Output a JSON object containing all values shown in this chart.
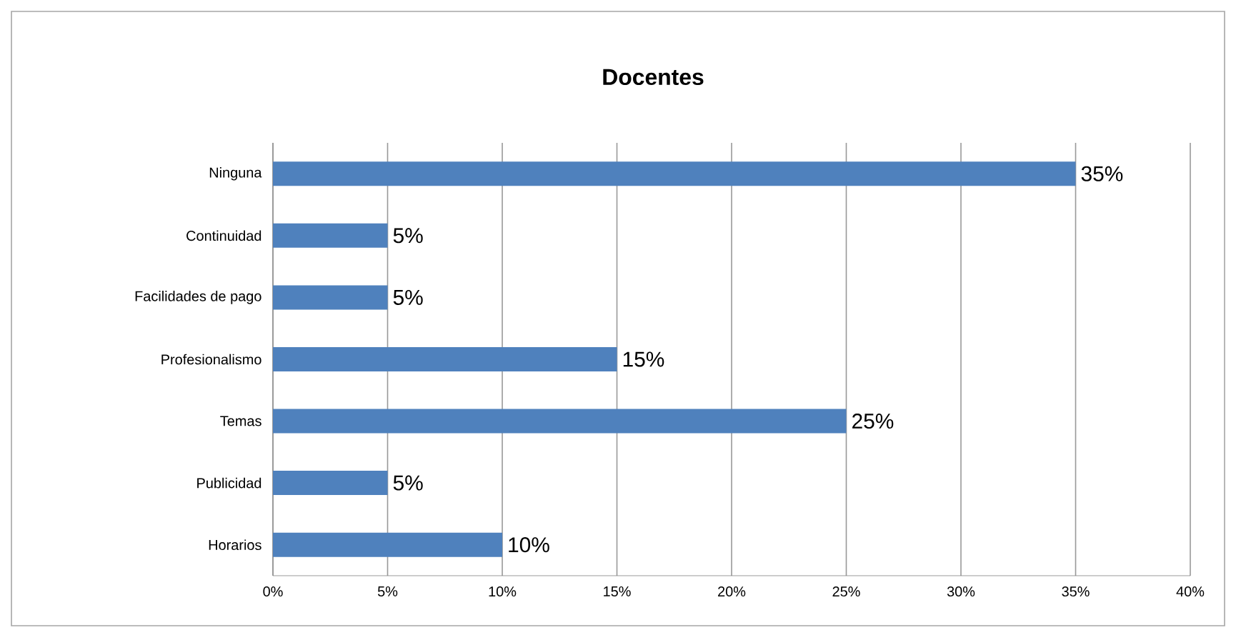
{
  "chart_data": {
    "type": "bar",
    "orientation": "horizontal",
    "title": "Docentes",
    "categories": [
      "Ninguna",
      "Continuidad",
      "Facilidades de pago",
      "Profesionalismo",
      "Temas",
      "Publicidad",
      "Horarios"
    ],
    "values": [
      35,
      5,
      5,
      15,
      25,
      5,
      10
    ],
    "value_labels": [
      "35%",
      "5%",
      "5%",
      "15%",
      "25%",
      "5%",
      "10%"
    ],
    "color": "#4f81bd",
    "xlim": [
      0,
      40
    ],
    "xticks": [
      {
        "value": 0,
        "label": "0%"
      },
      {
        "value": 5,
        "label": "5%"
      },
      {
        "value": 10,
        "label": "10%"
      },
      {
        "value": 15,
        "label": "15%"
      },
      {
        "value": 20,
        "label": "20%"
      },
      {
        "value": 25,
        "label": "25%"
      },
      {
        "value": 30,
        "label": "30%"
      },
      {
        "value": 35,
        "label": "35%"
      },
      {
        "value": 40,
        "label": "40%"
      }
    ],
    "grid": "x"
  }
}
